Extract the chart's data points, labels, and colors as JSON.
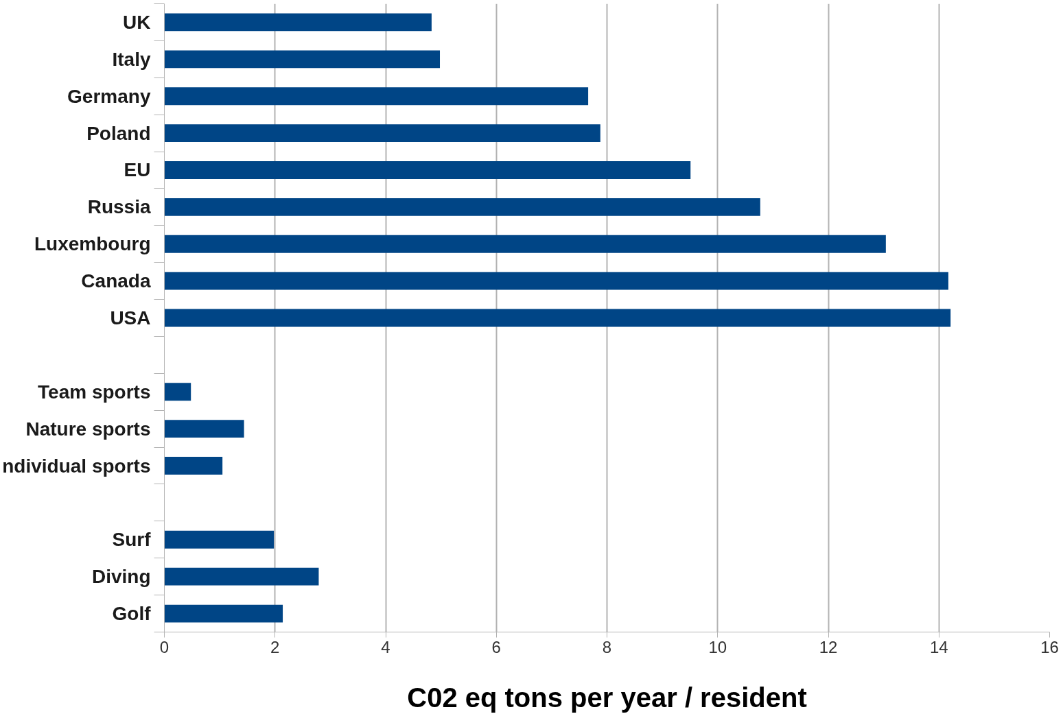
{
  "chart_data": {
    "type": "bar",
    "orientation": "horizontal",
    "xlabel": "C02 eq tons per year / resident",
    "categories": [
      "UK",
      "Italy",
      "Germany",
      "Poland",
      "EU",
      "Russia",
      "Luxembourg",
      "Canada",
      "USA",
      null,
      "Team sports",
      "Nature sports",
      "ndividual sports",
      null,
      "Surf",
      "Diving",
      "Golf"
    ],
    "values": [
      4.83,
      4.98,
      7.66,
      7.88,
      9.51,
      10.77,
      13.04,
      14.17,
      14.21,
      null,
      0.48,
      1.44,
      1.05,
      null,
      1.98,
      2.79,
      2.14
    ],
    "color": "#004586",
    "xlim": [
      0,
      16
    ],
    "xticks": [
      0,
      2,
      4,
      6,
      8,
      10,
      12,
      14,
      16
    ],
    "grid": "x"
  }
}
